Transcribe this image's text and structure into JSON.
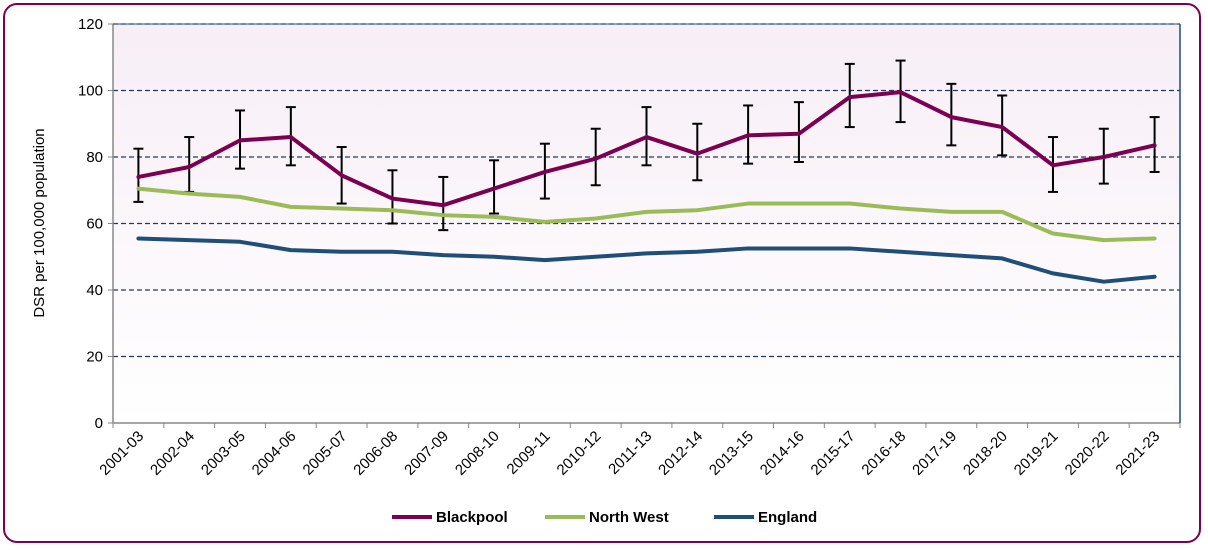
{
  "chart_data": {
    "type": "line",
    "title": "",
    "xlabel": "",
    "ylabel": "DSR per 100,000 population",
    "ylim": [
      0,
      120
    ],
    "yticks": [
      0,
      20,
      40,
      60,
      80,
      100,
      120
    ],
    "grid": "horizontal dashed",
    "legend": "bottom",
    "categories": [
      "2001-03",
      "2002-04",
      "2003-05",
      "2004-06",
      "2005-07",
      "2006-08",
      "2007-09",
      "2008-10",
      "2009-11",
      "2010-12",
      "2011-13",
      "2012-14",
      "2013-15",
      "2014-16",
      "2015-17",
      "2016-18",
      "2017-19",
      "2018-20",
      "2019-21",
      "2020-22",
      "2021-23"
    ],
    "series": [
      {
        "name": "Blackpool",
        "color": "#7B0052",
        "values": [
          74,
          77,
          85,
          86,
          74.5,
          67.5,
          65.5,
          70.5,
          75.5,
          79.5,
          86,
          81,
          86.5,
          87,
          98,
          99.5,
          92,
          89,
          77.5,
          80,
          83.5
        ],
        "ci_lower": [
          66.5,
          69.5,
          76.5,
          77.5,
          66,
          60,
          58,
          63,
          67.5,
          71.5,
          77.5,
          73,
          78,
          78.5,
          89,
          90.5,
          83.5,
          80.5,
          69.5,
          72,
          75.5
        ],
        "ci_upper": [
          82.5,
          86,
          94,
          95,
          83,
          76,
          74,
          79,
          84,
          88.5,
          95,
          90,
          95.5,
          96.5,
          108,
          109,
          102,
          98.5,
          86,
          88.5,
          92
        ]
      },
      {
        "name": "North West",
        "color": "#9BBB59",
        "values": [
          70.5,
          69,
          68,
          65,
          64.5,
          64,
          62.5,
          62,
          60.5,
          61.5,
          63.5,
          64,
          66,
          66,
          66,
          64.5,
          63.5,
          63.5,
          57,
          55,
          55.5
        ]
      },
      {
        "name": "England",
        "color": "#1F4E79",
        "values": [
          55.5,
          55,
          54.5,
          52,
          51.5,
          51.5,
          50.5,
          50,
          49,
          50,
          51,
          51.5,
          52.5,
          52.5,
          52.5,
          51.5,
          50.5,
          49.5,
          45,
          42.5,
          44
        ]
      }
    ]
  }
}
